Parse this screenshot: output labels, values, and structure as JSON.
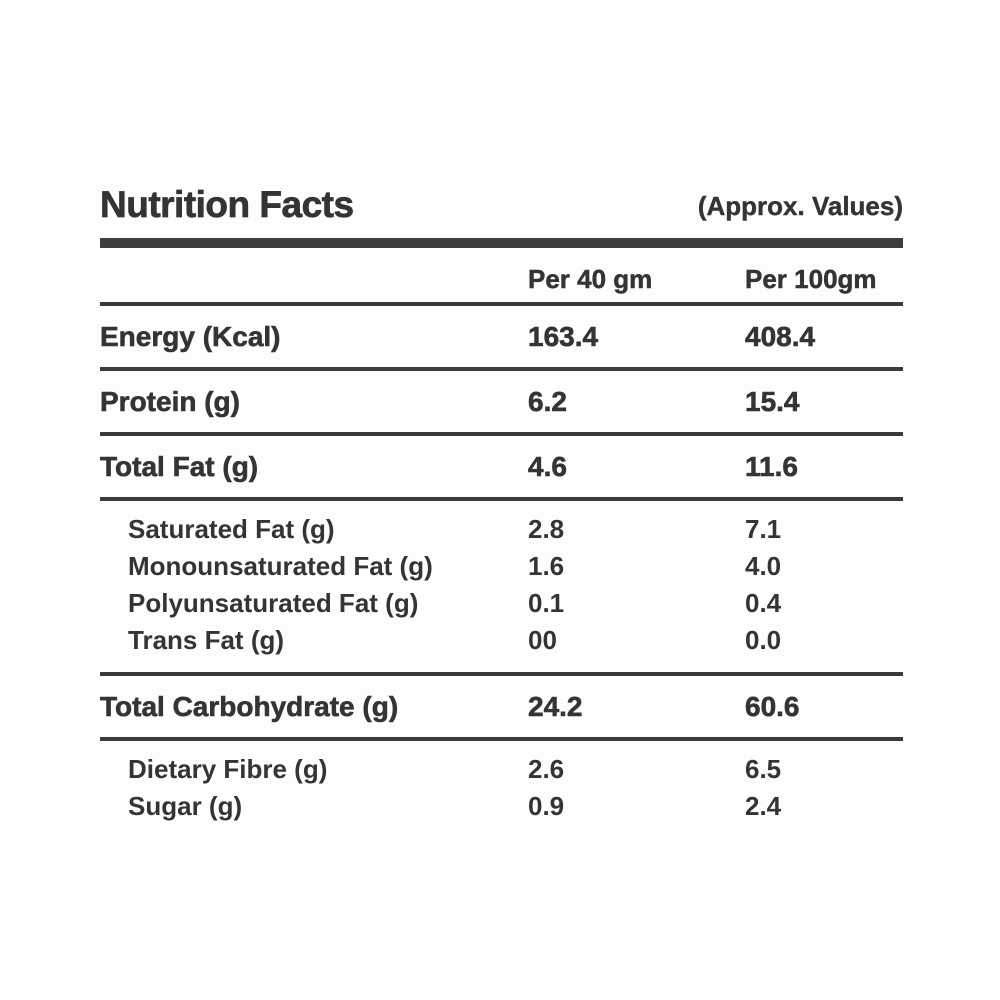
{
  "label": {
    "title": "Nutrition Facts",
    "approx_note": "(Approx. Values)",
    "columns": {
      "per40": "Per 40 gm",
      "per100": "Per 100gm"
    },
    "rows": [
      {
        "name": "Energy (Kcal)",
        "per40": "163.4",
        "per100": "408.4"
      },
      {
        "name": "Protein (g)",
        "per40": "6.2",
        "per100": "15.4"
      },
      {
        "name": "Total Fat (g)",
        "per40": "4.6",
        "per100": "11.6"
      },
      {
        "name": "Saturated Fat (g)",
        "per40": "2.8",
        "per100": "7.1"
      },
      {
        "name": "Monounsaturated Fat (g)",
        "per40": "1.6",
        "per100": "4.0"
      },
      {
        "name": "Polyunsaturated Fat (g)",
        "per40": "0.1",
        "per100": "0.4"
      },
      {
        "name": "Trans Fat (g)",
        "per40": "00",
        "per100": "0.0"
      },
      {
        "name": "Total Carbohydrate (g)",
        "per40": "24.2",
        "per100": "60.6"
      },
      {
        "name": "Dietary Fibre (g)",
        "per40": "2.6",
        "per100": "6.5"
      },
      {
        "name": "Sugar (g)",
        "per40": "0.9",
        "per100": "2.4"
      }
    ],
    "colors": {
      "text": "#343434",
      "rule": "#3a3a3a",
      "background": "#fdfdfd"
    }
  }
}
